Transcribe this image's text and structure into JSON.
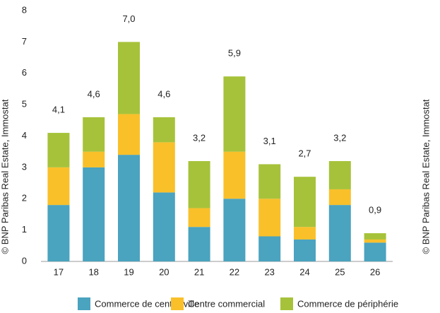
{
  "chart_data": {
    "type": "stacked_bar",
    "categories": [
      "17",
      "18",
      "19",
      "20",
      "21",
      "22",
      "23",
      "24",
      "25",
      "26"
    ],
    "series": [
      {
        "name": "Commerce de centre-ville",
        "color": "#4aa3bf",
        "values": [
          1.8,
          3.0,
          3.4,
          2.2,
          1.1,
          2.0,
          0.8,
          0.7,
          1.8,
          0.6
        ]
      },
      {
        "name": "Centre commercial",
        "color": "#f9c02a",
        "values": [
          1.2,
          0.5,
          1.3,
          1.6,
          0.6,
          1.5,
          1.2,
          0.4,
          0.5,
          0.1
        ]
      },
      {
        "name": "Commerce de périphérie",
        "color": "#a6c23a",
        "values": [
          1.1,
          1.1,
          2.3,
          0.8,
          1.5,
          2.4,
          1.1,
          1.6,
          0.9,
          0.2
        ]
      }
    ],
    "totals": [
      4.1,
      4.6,
      7.0,
      4.6,
      3.2,
      5.9,
      3.1,
      2.7,
      3.2,
      0.9
    ],
    "total_labels": [
      "4,1",
      "4,6",
      "7,0",
      "4,6",
      "3,2",
      "5,9",
      "3,1",
      "2,7",
      "3,2",
      "0,9"
    ],
    "ylim": [
      0,
      8
    ],
    "yticks": [
      0,
      1,
      2,
      3,
      4,
      5,
      6,
      7,
      8
    ],
    "grid": false,
    "source": "© BNP Paribas Real Estate, Immostat"
  }
}
